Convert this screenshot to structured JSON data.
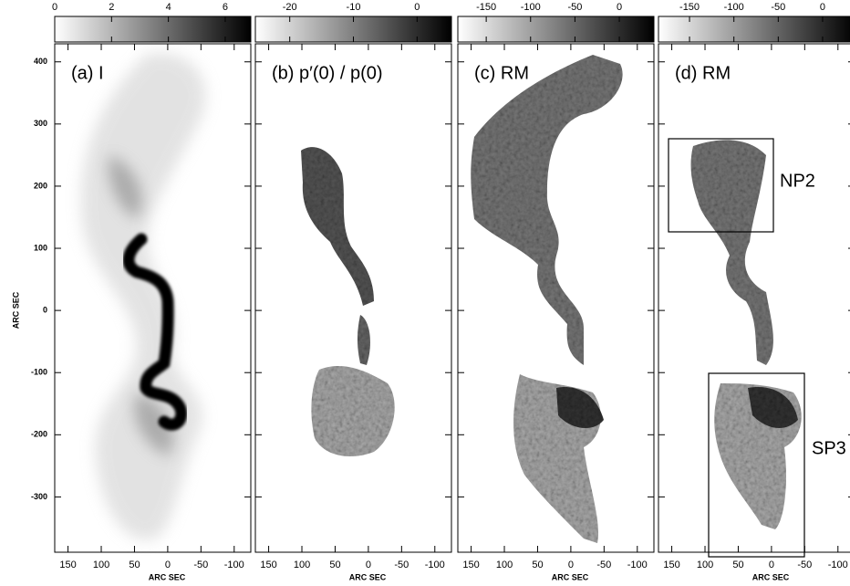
{
  "panels": [
    {
      "label": "(a) I",
      "colorbar": {
        "lim": [
          0,
          6.9
        ],
        "ticks": [
          0,
          2,
          4,
          6
        ]
      }
    },
    {
      "label": "(b) p′(0) / p(0)",
      "colorbar": {
        "lim": [
          -25.4,
          5.4
        ],
        "ticks": [
          -20,
          -10,
          0
        ]
      }
    },
    {
      "label": "(c) RM",
      "colorbar": {
        "lim": [
          -182,
          39
        ],
        "ticks": [
          -150,
          -100,
          -50,
          0
        ]
      }
    },
    {
      "label": "(d) RM",
      "colorbar": {
        "lim": [
          -185,
          36
        ],
        "ticks": [
          -150,
          -100,
          -50,
          0
        ]
      }
    }
  ],
  "xlim": [
    170,
    -125
  ],
  "xticks": [
    150,
    100,
    50,
    0,
    -50,
    -100
  ],
  "ylim": [
    -389,
    429
  ],
  "yticks": [
    400,
    300,
    200,
    100,
    0,
    -100,
    -200,
    -300
  ],
  "xlabel": "ARC SEC",
  "ylabel": "ARC SEC",
  "boxes": [
    {
      "label": "NP2"
    },
    {
      "label": "SP3"
    }
  ]
}
